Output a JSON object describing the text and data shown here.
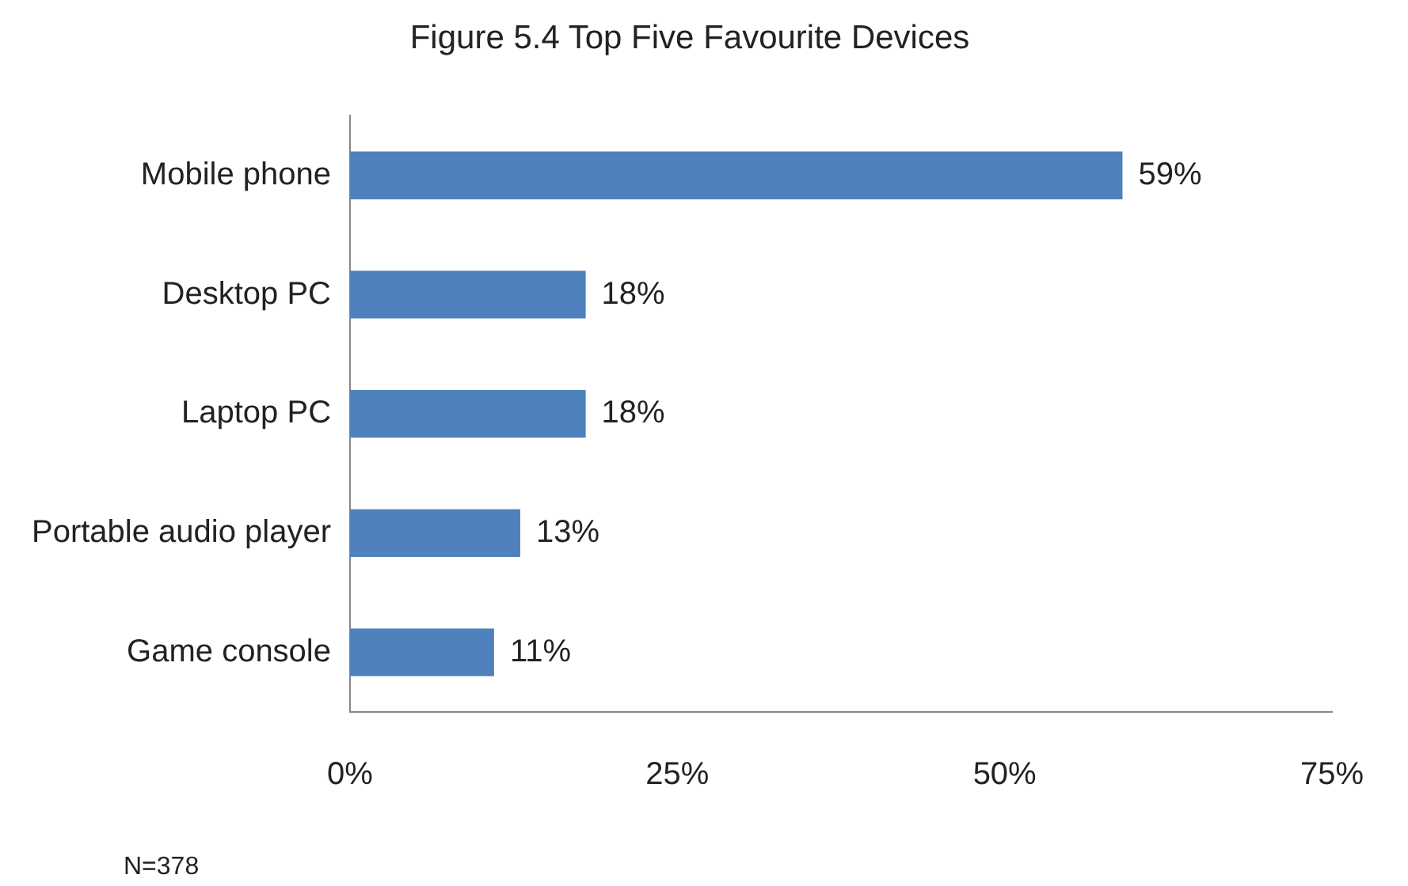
{
  "chart_data": {
    "type": "bar",
    "orientation": "horizontal",
    "title": "Figure 5.4 Top Five Favourite Devices",
    "categories": [
      "Mobile phone",
      "Desktop PC",
      "Laptop PC",
      "Portable audio player",
      "Game console"
    ],
    "values": [
      59,
      18,
      18,
      13,
      11
    ],
    "color": "#4f81bd",
    "value_labels": [
      "59%",
      "18%",
      "18%",
      "13%",
      "11%"
    ],
    "xlim": [
      0,
      75
    ],
    "xticks": [
      {
        "value": 0,
        "label": "0%"
      },
      {
        "value": 25,
        "label": "25%"
      },
      {
        "value": 50,
        "label": "50%"
      },
      {
        "value": 75,
        "label": "75%"
      }
    ],
    "grid": false,
    "legend": false,
    "annotations": [
      "N=378"
    ]
  }
}
